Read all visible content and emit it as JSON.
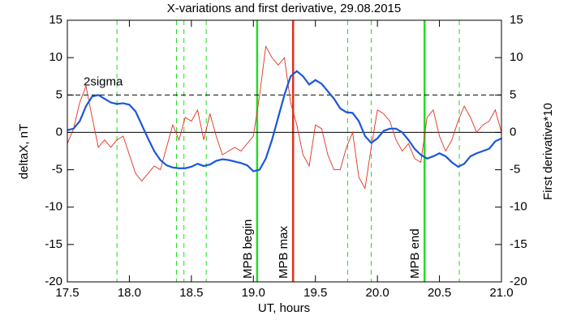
{
  "chart_data": {
    "type": "line",
    "title": "X-variations and first derivative, 29.08.2015",
    "xlabel": "UT, hours",
    "ylabel": "deltaX, nT",
    "y2label": "First derivative*10",
    "ylabel_color": "#1a56db",
    "y2label_color": "#e0301e",
    "xlim": [
      17.5,
      21.0
    ],
    "xticks": [
      17.5,
      {
        "value": 18,
        "label": "18.0"
      },
      18.5,
      {
        "value": 19,
        "label": "19.0"
      },
      19.5,
      {
        "value": 20,
        "label": "20.0"
      },
      20.5,
      {
        "value": 21,
        "label": "21.0"
      }
    ],
    "ylim": [
      -20,
      15
    ],
    "yticks": [
      -20,
      -15,
      -10,
      -5,
      0,
      5,
      10,
      15
    ],
    "y2lim": [
      -20,
      15
    ],
    "y2ticks": [
      -20,
      -15,
      -10,
      -5,
      0,
      5,
      10,
      15
    ],
    "x": [
      17.5,
      17.55,
      17.6,
      17.65,
      17.7,
      17.75,
      17.8,
      17.85,
      17.9,
      17.95,
      18.0,
      18.05,
      18.1,
      18.15,
      18.2,
      18.25,
      18.3,
      18.35,
      18.4,
      18.45,
      18.5,
      18.55,
      18.6,
      18.65,
      18.7,
      18.75,
      18.8,
      18.85,
      18.9,
      18.95,
      19.0,
      19.05,
      19.1,
      19.15,
      19.2,
      19.25,
      19.3,
      19.35,
      19.4,
      19.45,
      19.5,
      19.55,
      19.6,
      19.65,
      19.7,
      19.75,
      19.8,
      19.85,
      19.9,
      19.95,
      20.0,
      20.05,
      20.1,
      20.15,
      20.2,
      20.25,
      20.3,
      20.35,
      20.4,
      20.45,
      20.5,
      20.55,
      20.6,
      20.65,
      20.7,
      20.75,
      20.8,
      20.85,
      20.9,
      20.95,
      21.0
    ],
    "series": [
      {
        "color": "#1a56db",
        "width": 2.2,
        "values": [
          0.3,
          0.5,
          1.5,
          3.5,
          4.8,
          5.0,
          4.5,
          4.0,
          3.8,
          3.9,
          3.7,
          2.8,
          1.0,
          -0.8,
          -2.5,
          -3.7,
          -4.4,
          -4.7,
          -4.8,
          -4.8,
          -4.6,
          -4.2,
          -4.5,
          -4.3,
          -3.8,
          -3.6,
          -3.7,
          -3.9,
          -4.1,
          -4.4,
          -5.2,
          -5.0,
          -3.5,
          -1,
          2,
          5,
          7.5,
          8.2,
          7.5,
          6.4,
          7.0,
          6.5,
          5.5,
          4.5,
          3.2,
          2.7,
          2.6,
          1.5,
          -0.5,
          -1.4,
          -0.8,
          0.2,
          0.5,
          0.5,
          0,
          -1.0,
          -2.2,
          -3.0,
          -3.5,
          -3.2,
          -2.8,
          -3.2,
          -4.0,
          -4.6,
          -4.2,
          -3.2,
          -2.8,
          -2.5,
          -2.2,
          -1.2,
          -0.8
        ]
      },
      {
        "color": "#e0301e",
        "width": 0.9,
        "axis": "y2",
        "values": [
          -1.5,
          0.5,
          4,
          6.2,
          2,
          -2,
          -1,
          -2,
          -1,
          -0.5,
          -3,
          -5.5,
          -6.5,
          -5.5,
          -4.5,
          -5,
          -2,
          1,
          -1,
          2,
          1.5,
          3,
          -1,
          2.5,
          -0.5,
          -3,
          -2.5,
          -2,
          -2.5,
          -1.5,
          -0.5,
          5,
          11.5,
          10,
          9,
          10,
          4,
          1,
          -3,
          -4.5,
          1,
          0.5,
          -3,
          -5,
          -5,
          -2,
          0,
          -6,
          -7.5,
          -2,
          3,
          2.5,
          1.5,
          -1,
          -2.5,
          -1.5,
          -3.5,
          -4,
          2,
          3,
          -0.5,
          -2.5,
          -1,
          1.5,
          3.5,
          2,
          0,
          1,
          1.5,
          3,
          0
        ]
      }
    ],
    "hlines": [
      {
        "y": 5,
        "color": "#000000",
        "style": "dashed",
        "label": "2sigma"
      },
      {
        "y": 0,
        "color": "#000000",
        "style": "solid"
      }
    ],
    "vlines": [
      {
        "x": 17.9,
        "color": "#22dd22",
        "style": "dashed"
      },
      {
        "x": 18.38,
        "color": "#22dd22",
        "style": "dashed"
      },
      {
        "x": 18.44,
        "color": "#22dd22",
        "style": "dashed"
      },
      {
        "x": 18.62,
        "color": "#22dd22",
        "style": "dashed"
      },
      {
        "x": 19.03,
        "color": "#22dd22",
        "style": "solid",
        "label": "MPB begin"
      },
      {
        "x": 19.32,
        "color": "#e0301e",
        "style": "solid",
        "label": "MPB max"
      },
      {
        "x": 19.76,
        "color": "#22dd22",
        "style": "dashed"
      },
      {
        "x": 19.95,
        "color": "#22dd22",
        "style": "dashed"
      },
      {
        "x": 20.38,
        "color": "#22dd22",
        "style": "solid",
        "label": "MPB end"
      },
      {
        "x": 20.66,
        "color": "#22dd22",
        "style": "dashed"
      }
    ]
  }
}
